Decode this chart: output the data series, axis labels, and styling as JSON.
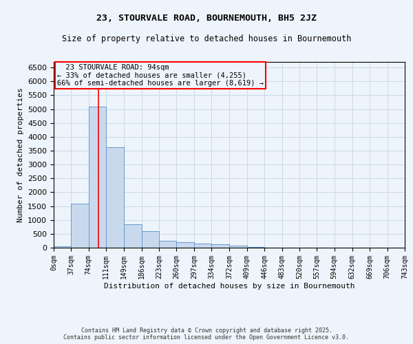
{
  "title": "23, STOURVALE ROAD, BOURNEMOUTH, BH5 2JZ",
  "subtitle": "Size of property relative to detached houses in Bournemouth",
  "xlabel": "Distribution of detached houses by size in Bournemouth",
  "ylabel": "Number of detached properties",
  "footer_line1": "Contains HM Land Registry data © Crown copyright and database right 2025.",
  "footer_line2": "Contains public sector information licensed under the Open Government Licence v3.0.",
  "annotation_line1": "23 STOURVALE ROAD: 94sqm",
  "annotation_line2": "← 33% of detached houses are smaller (4,255)",
  "annotation_line3": "66% of semi-detached houses are larger (8,619) →",
  "bar_color": "#c9d9ed",
  "bar_edge_color": "#6699cc",
  "grid_color": "#c8d8e8",
  "bg_color": "#eef4fb",
  "redline_x": 94,
  "bin_edges": [
    0,
    37,
    74,
    111,
    149,
    186,
    223,
    260,
    297,
    334,
    372,
    409,
    446,
    483,
    520,
    557,
    594,
    632,
    669,
    706,
    743
  ],
  "bar_heights": [
    60,
    1580,
    5080,
    3620,
    850,
    600,
    250,
    190,
    150,
    120,
    70,
    15,
    0,
    0,
    0,
    0,
    0,
    0,
    0,
    0
  ],
  "ylim": [
    0,
    6700
  ],
  "yticks": [
    0,
    500,
    1000,
    1500,
    2000,
    2500,
    3000,
    3500,
    4000,
    4500,
    5000,
    5500,
    6000,
    6500
  ]
}
